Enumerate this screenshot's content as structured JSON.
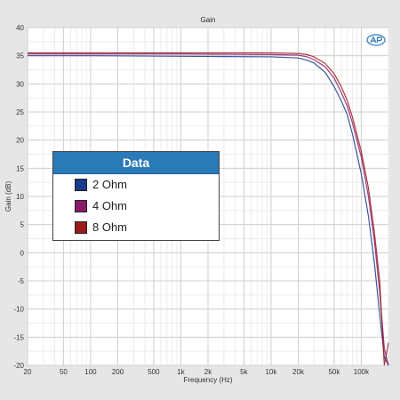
{
  "chart_data": {
    "type": "line",
    "title": "Gain",
    "xlabel": "Frequency (Hz)",
    "ylabel": "Gain (dB)",
    "xscale": "log",
    "xlim": [
      20,
      200000
    ],
    "ylim": [
      -20,
      40
    ],
    "x_ticks": [
      20,
      50,
      100,
      200,
      500,
      1000,
      2000,
      5000,
      10000,
      20000,
      50000,
      100000
    ],
    "x_tick_labels": [
      "20",
      "50",
      "100",
      "200",
      "500",
      "1k",
      "2k",
      "5k",
      "10k",
      "20k",
      "50k",
      "100k"
    ],
    "y_ticks": [
      40,
      35,
      30,
      25,
      20,
      15,
      10,
      5,
      0,
      -5,
      -10,
      -15,
      -20
    ],
    "y_tick_labels": [
      "40",
      "35",
      "30",
      "25",
      "20",
      "15",
      "10",
      "5",
      "0",
      "-5",
      "-10",
      "-15",
      "-20"
    ],
    "grid": true,
    "legend": {
      "title": "Data",
      "placement": "center-left"
    },
    "series": [
      {
        "name": "2 Ohm",
        "color": "#1a3a8c",
        "x": [
          20,
          100,
          1000,
          10000,
          20000,
          25000,
          30000,
          40000,
          50000,
          60000,
          70000,
          80000,
          100000,
          120000,
          140000,
          160000,
          180000,
          200000
        ],
        "y": [
          35.0,
          35.0,
          34.9,
          34.8,
          34.6,
          34.2,
          33.7,
          32.0,
          29.5,
          27.0,
          24.5,
          21.0,
          14.0,
          6.5,
          -2.0,
          -11.0,
          -18.5,
          -20.0
        ]
      },
      {
        "name": "4 Ohm",
        "color": "#8a1a6a",
        "x": [
          20,
          100,
          1000,
          10000,
          20000,
          25000,
          30000,
          40000,
          50000,
          60000,
          70000,
          80000,
          100000,
          120000,
          140000,
          160000,
          180000,
          200000
        ],
        "y": [
          35.3,
          35.3,
          35.3,
          35.2,
          35.1,
          34.8,
          34.3,
          33.0,
          31.0,
          28.5,
          26.0,
          23.0,
          17.0,
          10.0,
          2.0,
          -7.0,
          -17.0,
          -20.0
        ]
      },
      {
        "name": "8 Ohm",
        "color": "#9a1a1a",
        "x": [
          20,
          100,
          1000,
          10000,
          20000,
          25000,
          30000,
          40000,
          50000,
          60000,
          70000,
          80000,
          100000,
          120000,
          140000,
          160000,
          180000,
          200000
        ],
        "y": [
          35.5,
          35.5,
          35.5,
          35.5,
          35.4,
          35.2,
          34.8,
          33.6,
          31.8,
          29.5,
          27.0,
          24.0,
          18.0,
          11.5,
          3.5,
          -5.0,
          -20.0,
          -16.0
        ]
      }
    ]
  }
}
